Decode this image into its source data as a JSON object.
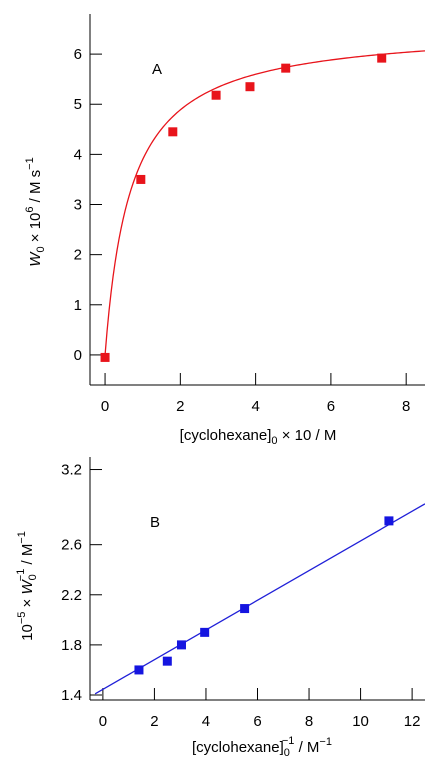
{
  "chart_data": [
    {
      "type": "scatter",
      "panel_label": "A",
      "xlabel": {
        "main": "[cyclohexane]",
        "sub": "0",
        "tail": " × 10 / M"
      },
      "ylabel": {
        "w": "W",
        "wsub": "0",
        "mid": " × 10",
        "exp": "6",
        "unit": " / M s",
        "unitexp": "−1"
      },
      "xlim": [
        -0.4,
        8.5
      ],
      "ylim": [
        -0.6,
        6.8
      ],
      "x_ticks": [
        0,
        2,
        4,
        6,
        8
      ],
      "x_tick_labels": [
        "0",
        "2",
        "4",
        "6",
        "8"
      ],
      "y_ticks": [
        0,
        1,
        2,
        3,
        4,
        5,
        6
      ],
      "y_tick_labels": [
        "0",
        "1",
        "2",
        "3",
        "4",
        "5",
        "6"
      ],
      "grid": false,
      "series": [
        {
          "marker_color": "#e8141b",
          "x": [
            0,
            0.95,
            1.8,
            2.95,
            3.85,
            4.8,
            7.35
          ],
          "y": [
            -0.05,
            3.5,
            4.45,
            5.18,
            5.35,
            5.72,
            5.92
          ]
        }
      ],
      "fit": {
        "color": "#e8141b",
        "model": "hyperbolic",
        "vmax": 6.55,
        "k": 0.68
      }
    },
    {
      "type": "scatter",
      "panel_label": "B",
      "xlabel": {
        "main": "[cyclohexane]",
        "sub": "0",
        "exp": "−1",
        "tail": " / M",
        "tailexp": "−1"
      },
      "ylabel": {
        "pre": "10",
        "preexp": "−5",
        "mid": " × ",
        "w": "W",
        "wsub": "0",
        "wexp": "−1",
        "unit": " / M",
        "unitexp": "−1"
      },
      "xlim": [
        -0.5,
        12.5
      ],
      "ylim": [
        1.36,
        3.3
      ],
      "x_ticks": [
        0,
        2,
        4,
        6,
        8,
        10,
        12
      ],
      "x_tick_labels": [
        "0",
        "2",
        "4",
        "6",
        "8",
        "10",
        "12"
      ],
      "y_ticks": [
        1.4,
        1.8,
        2.2,
        2.6,
        3.2
      ],
      "y_tick_labels": [
        "1.4",
        "1.8",
        "2.2",
        "2.6",
        "3.2"
      ],
      "grid": false,
      "series": [
        {
          "marker_color": "#1515e0",
          "x": [
            1.4,
            2.5,
            3.05,
            3.95,
            5.5,
            11.1
          ],
          "y": [
            1.6,
            1.67,
            1.8,
            1.9,
            2.09,
            2.79
          ]
        }
      ],
      "fit": {
        "color": "#2020d8",
        "model": "linear",
        "slope": 0.1185,
        "intercept": 1.445,
        "x_range": [
          -0.3,
          12.5
        ]
      }
    }
  ]
}
